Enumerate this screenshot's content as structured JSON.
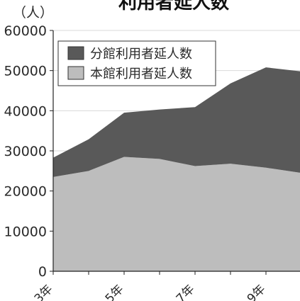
{
  "chart_data": {
    "type": "area",
    "title": "利用者延人数",
    "unit_label": "（人）",
    "stacked": true,
    "x_tick_labels": [
      "3年",
      "5年",
      "7年",
      "9年"
    ],
    "x_tick_positions": [
      3,
      5,
      7,
      9
    ],
    "x": [
      3,
      4,
      5,
      6,
      7,
      8,
      9,
      10
    ],
    "series": [
      {
        "name": "本館利用者延人数",
        "color": "#bdbdbd",
        "values": [
          23500,
          25000,
          28500,
          28000,
          26200,
          26800,
          25800,
          24500
        ]
      },
      {
        "name": "分館利用者延人数",
        "color": "#595959",
        "values": [
          4800,
          7900,
          11000,
          12300,
          14700,
          20000,
          25000,
          25300
        ]
      }
    ],
    "y_ticks": [
      "0",
      "10000",
      "20000",
      "30000",
      "40000",
      "50000",
      "60000"
    ],
    "ylim": [
      0,
      60000
    ],
    "legend_position": "top-left",
    "grid": true
  }
}
